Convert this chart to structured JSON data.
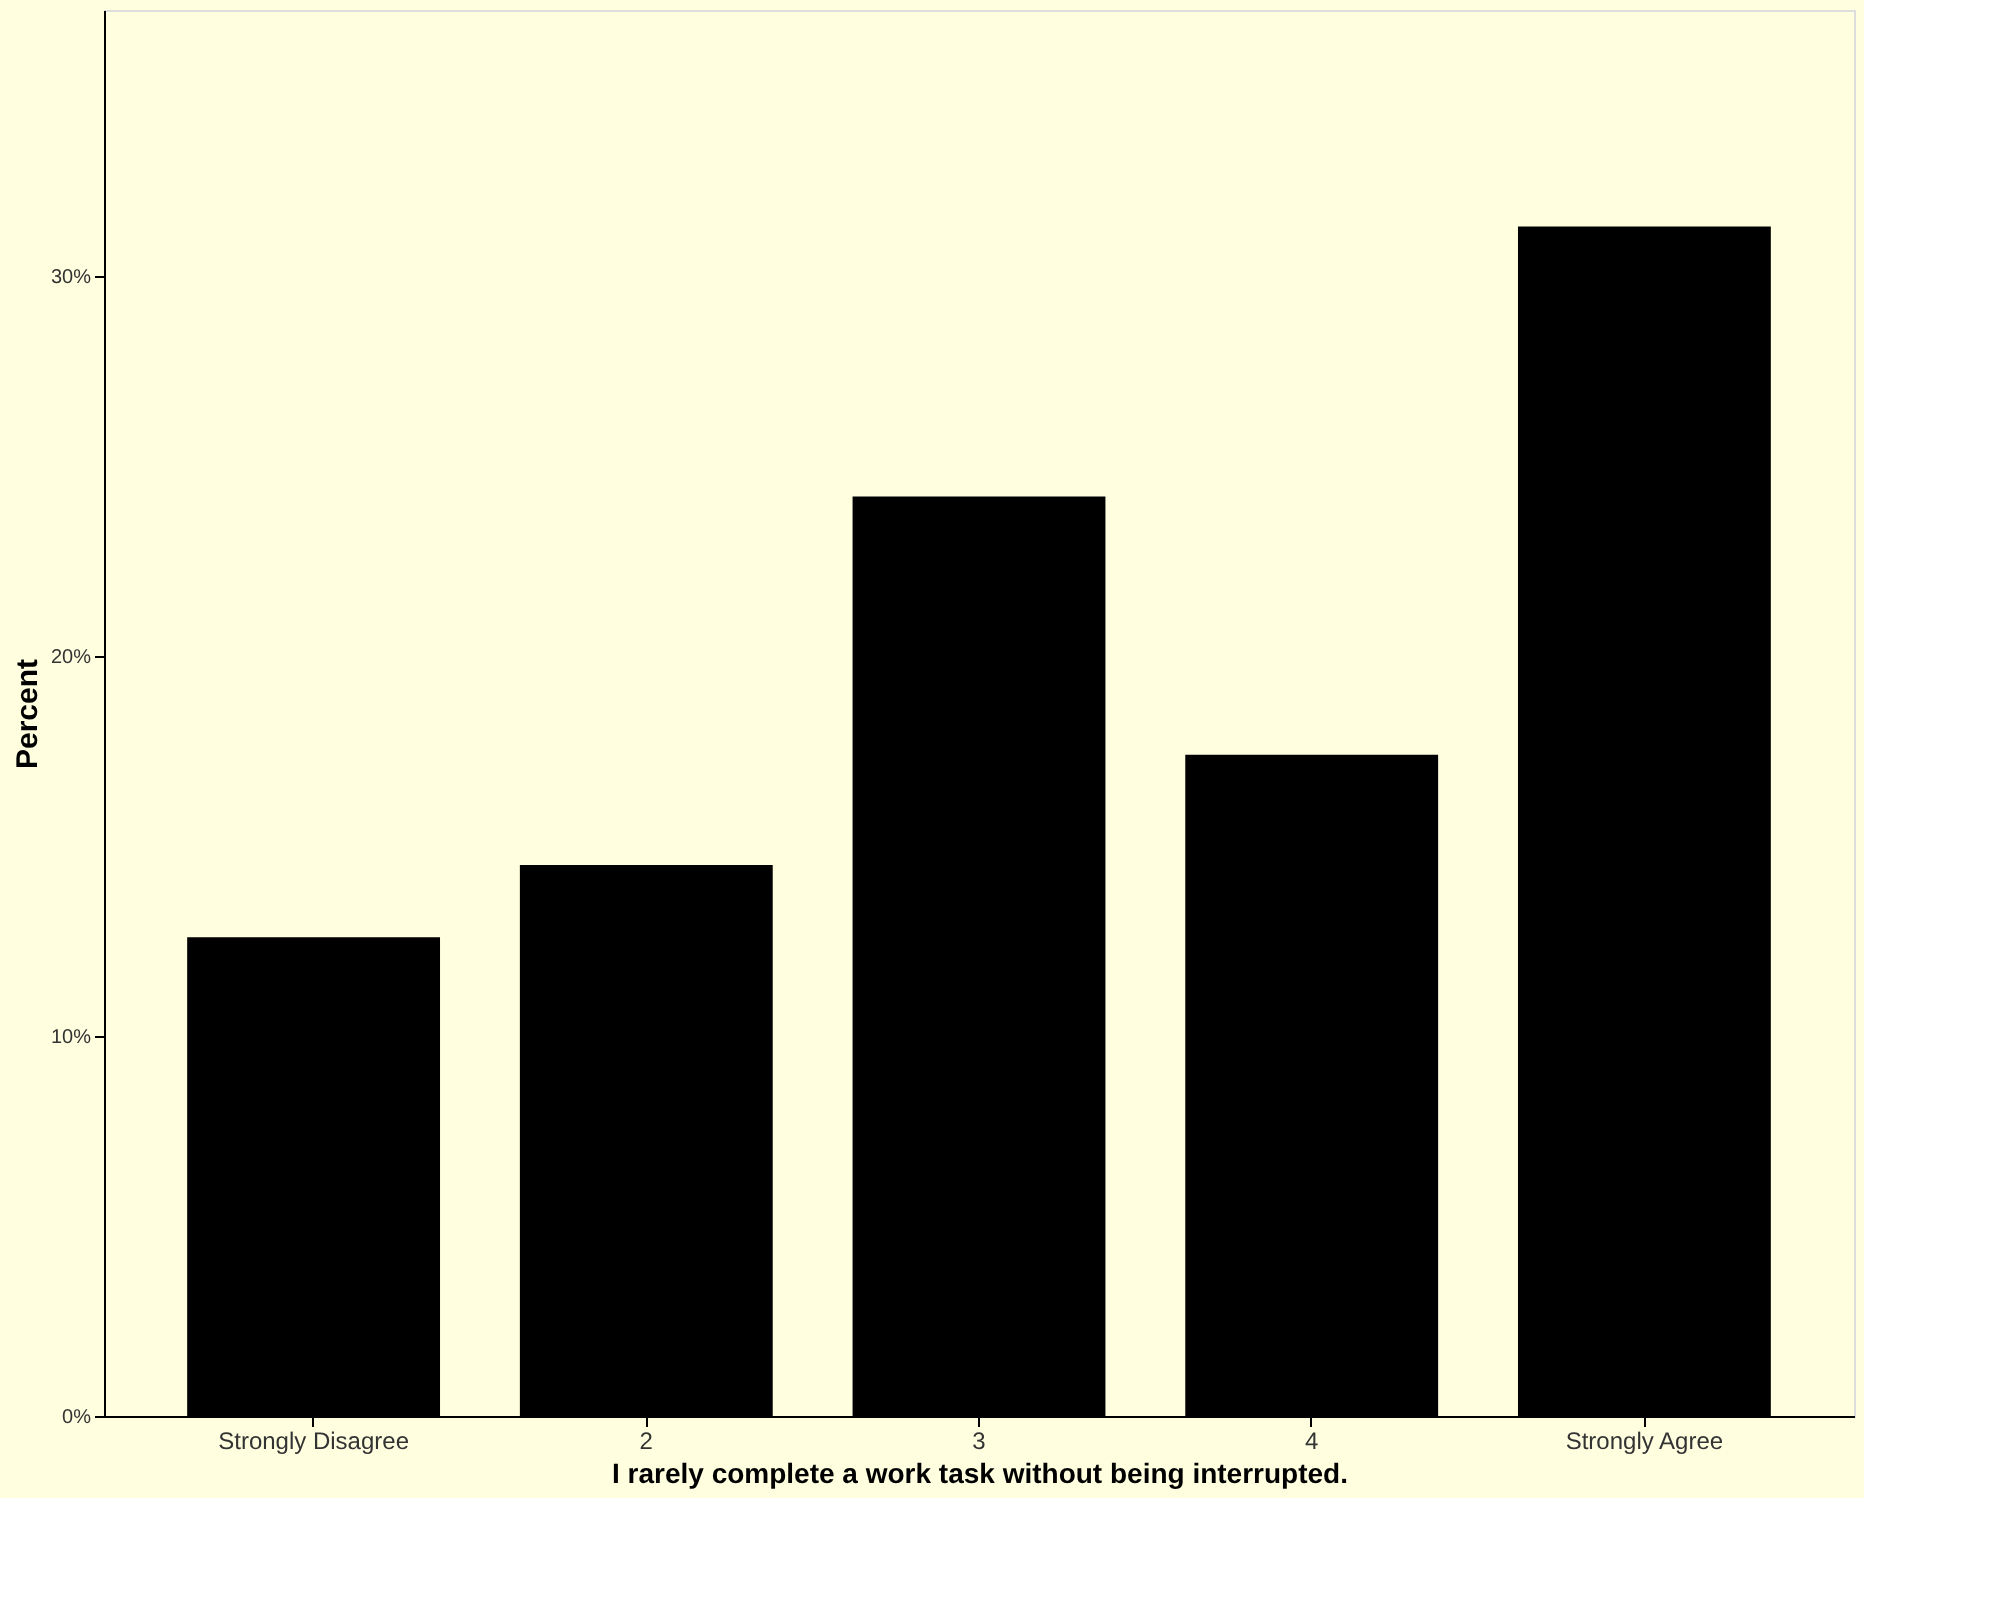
{
  "chart_data": {
    "type": "bar",
    "xlabel": "I rarely complete a work task without being interrupted.",
    "ylabel": "Percent",
    "categories": [
      "Strongly Disagree",
      "2",
      "3",
      "4",
      "Strongly Agree"
    ],
    "values": [
      12.6,
      14.5,
      24.2,
      17.4,
      31.3
    ],
    "color": "#000000",
    "ylim": [
      0,
      37
    ],
    "yticks": [
      {
        "value": 0,
        "label": "0%"
      },
      {
        "value": 10,
        "label": "10%"
      },
      {
        "value": 20,
        "label": "20%"
      },
      {
        "value": 30,
        "label": "30%"
      }
    ],
    "grid": false
  }
}
